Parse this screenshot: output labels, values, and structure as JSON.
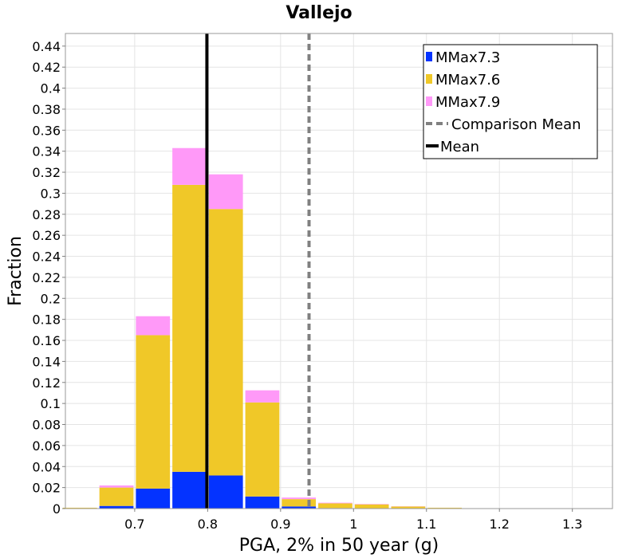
{
  "chart_data": {
    "type": "bar",
    "stacked": true,
    "title": "Vallejo",
    "xlabel": "PGA, 2% in 50 year (g)",
    "ylabel": "Fraction",
    "xlim": [
      0.605,
      1.355
    ],
    "ylim": [
      0,
      0.452
    ],
    "bin_width": 0.05,
    "x_ticks": [
      0.7,
      0.8,
      0.9,
      1,
      1.1,
      1.2,
      1.3
    ],
    "x_tick_labels": [
      "0.7",
      "0.8",
      "0.9",
      "1",
      "1.1",
      "1.2",
      "1.3"
    ],
    "y_ticks": [
      0,
      0.02,
      0.04,
      0.06,
      0.08,
      0.1,
      0.12,
      0.14,
      0.16,
      0.18,
      0.2,
      0.22,
      0.24,
      0.26,
      0.28,
      0.3,
      0.32,
      0.34,
      0.36,
      0.38,
      0.4,
      0.42,
      0.44
    ],
    "y_tick_labels": [
      "0",
      "0.02",
      "0.04",
      "0.06",
      "0.08",
      "0.1",
      "0.12",
      "0.14",
      "0.16",
      "0.18",
      "0.2",
      "0.22",
      "0.24",
      "0.26",
      "0.28",
      "0.3",
      "0.32",
      "0.34",
      "0.36",
      "0.38",
      "0.4",
      "0.42",
      "0.44"
    ],
    "categories": [
      0.6,
      0.65,
      0.7,
      0.75,
      0.8,
      0.85,
      0.9,
      0.95,
      1.0,
      1.05,
      1.1,
      1.15,
      1.2,
      1.25,
      1.3
    ],
    "series": [
      {
        "name": "MMax7.3",
        "color": "#0433ff",
        "values": [
          0,
          0.0025,
          0.019,
          0.035,
          0.0315,
          0.0115,
          0.002,
          0.0005,
          0.0002,
          0,
          0,
          0,
          0,
          0,
          0
        ]
      },
      {
        "name": "MMax7.6",
        "color": "#f0c828",
        "values": [
          0.0008,
          0.0175,
          0.146,
          0.273,
          0.2535,
          0.0895,
          0.007,
          0.0045,
          0.0038,
          0.002,
          0.0008,
          0,
          0,
          0,
          0
        ]
      },
      {
        "name": "MMax7.9",
        "color": "#ff99f8",
        "values": [
          0,
          0.002,
          0.018,
          0.035,
          0.033,
          0.0115,
          0.0015,
          0.0006,
          0.0004,
          0.0002,
          0,
          0,
          0,
          0,
          0
        ]
      }
    ],
    "lines": [
      {
        "name": "Comparison Mean",
        "x": 0.939,
        "color": "#808080",
        "style": "dashed"
      },
      {
        "name": "Mean",
        "x": 0.799,
        "color": "#000000",
        "style": "solid"
      }
    ],
    "legend": {
      "position": "top-right",
      "entries": [
        "MMax7.3",
        "MMax7.6",
        "MMax7.9",
        "Comparison Mean",
        "Mean"
      ]
    },
    "grid": true
  }
}
